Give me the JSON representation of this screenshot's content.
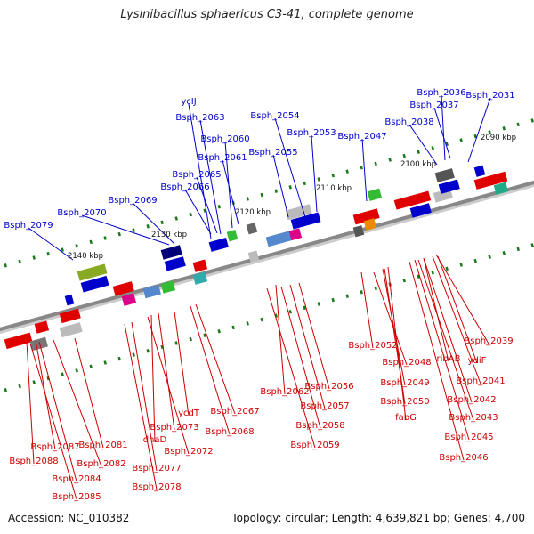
{
  "title": "Lysinibacillus sphaericus C3-41, complete genome",
  "accession_text": "Accession: NC_010382",
  "summary_text": "Topology: circular; Length: 4,639,821 bp; Genes: 4,700",
  "colors": {
    "forward_label": "#0000cc",
    "reverse_label": "#cc0000",
    "backbone": "#888888",
    "tick": "#1a7a1a"
  },
  "ruler_labels": [
    "2090 kbp",
    "2100 kbp",
    "2110 kbp",
    "2120 kbp",
    "2130 kbp",
    "2140 kbp"
  ],
  "forward_gene_labels": [
    "Bsph_2036",
    "Bsph_2031",
    "Bsph_2037",
    "Bsph_2038",
    "ycIJ",
    "Bsph_2063",
    "Bsph_2054",
    "Bsph_2053",
    "Bsph_2047",
    "Bsph_2060",
    "Bsph_2061",
    "Bsph_2055",
    "Bsph_2065",
    "Bsph_2066",
    "Bsph_2069",
    "Bsph_2070",
    "Bsph_2079"
  ],
  "reverse_gene_labels": [
    "Bsph_2052",
    "Bsph_2039",
    "Bsph_2048",
    "ribAB",
    "ydiF",
    "Bsph_2049",
    "Bsph_2041",
    "Bsph_2050",
    "Bsph_2042",
    "fabG",
    "Bsph_2043",
    "Bsph_2045",
    "Bsph_2046",
    "Bsph_2056",
    "Bsph_2062",
    "Bsph_2057",
    "Bsph_2058",
    "Bsph_2059",
    "Bsph_2067",
    "Bsph_2068",
    "ycdT",
    "Bsph_2073",
    "dnaD",
    "Bsph_2072",
    "Bsph_2077",
    "Bsph_2078",
    "Bsph_2081",
    "Bsph_2087",
    "Bsph_2088",
    "Bsph_2082",
    "Bsph_2084",
    "Bsph_2085"
  ]
}
